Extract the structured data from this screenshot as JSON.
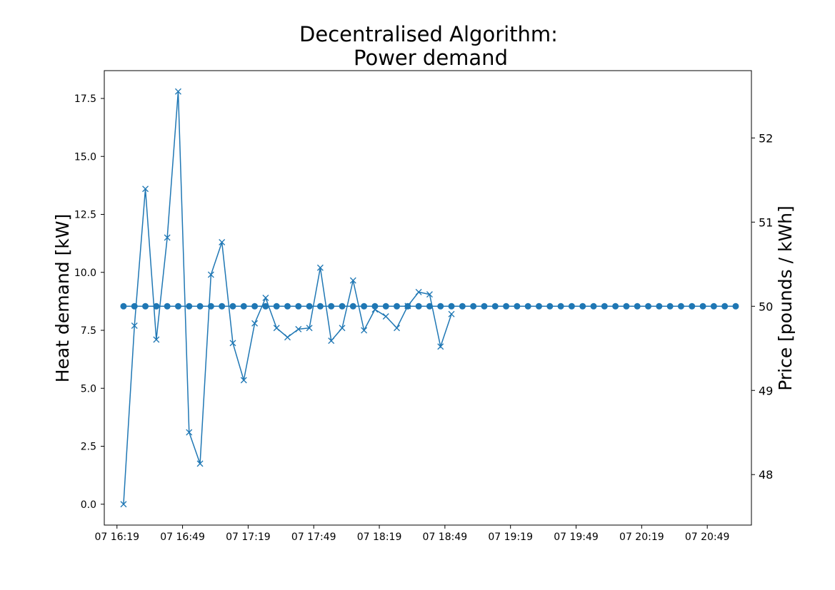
{
  "chart_data": {
    "type": "line",
    "title_line1": "Decentralised Algorithm:",
    "title_line2": "Power demand",
    "xlabel": "",
    "ylabel_left": "Heat demand [kW]",
    "ylabel_right": "Price [pounds / kWh]",
    "x_ticks": [
      "07 16:19",
      "07 16:49",
      "07 17:19",
      "07 17:49",
      "07 18:19",
      "07 18:49",
      "07 19:19",
      "07 19:49",
      "07 20:19",
      "07 20:49"
    ],
    "x_start": "16:22",
    "x_step_minutes": 5,
    "ylim_left": [
      -0.9,
      18.7
    ],
    "ylim_right": [
      47.4,
      52.8
    ],
    "y_ticks_left": [
      "0.0",
      "2.5",
      "5.0",
      "7.5",
      "10.0",
      "12.5",
      "15.0",
      "17.5"
    ],
    "y_ticks_right": [
      "48",
      "49",
      "50",
      "51",
      "52"
    ],
    "grid": false,
    "series": [
      {
        "axis": "left",
        "marker": "x",
        "color": "#1f77b4",
        "values": [
          0.0,
          7.7,
          13.6,
          7.1,
          11.5,
          17.8,
          3.1,
          1.75,
          9.9,
          11.3,
          6.95,
          5.35,
          7.8,
          8.9,
          7.6,
          7.2,
          7.55,
          7.6,
          10.2,
          7.05,
          7.6,
          9.65,
          7.5,
          8.4,
          8.1,
          7.6,
          8.55,
          9.15,
          9.05,
          6.8,
          8.2
        ]
      },
      {
        "axis": "right",
        "marker": "o",
        "color": "#1f77b4",
        "values": [
          50,
          50,
          50,
          50,
          50,
          50,
          50,
          50,
          50,
          50,
          50,
          50,
          50,
          50,
          50,
          50,
          50,
          50,
          50,
          50,
          50,
          50,
          50,
          50,
          50,
          50,
          50,
          50,
          50,
          50,
          50,
          50,
          50,
          50,
          50,
          50,
          50,
          50,
          50,
          50,
          50,
          50,
          50,
          50,
          50,
          50,
          50,
          50,
          50,
          50,
          50,
          50,
          50,
          50,
          50,
          50,
          50
        ]
      }
    ]
  }
}
